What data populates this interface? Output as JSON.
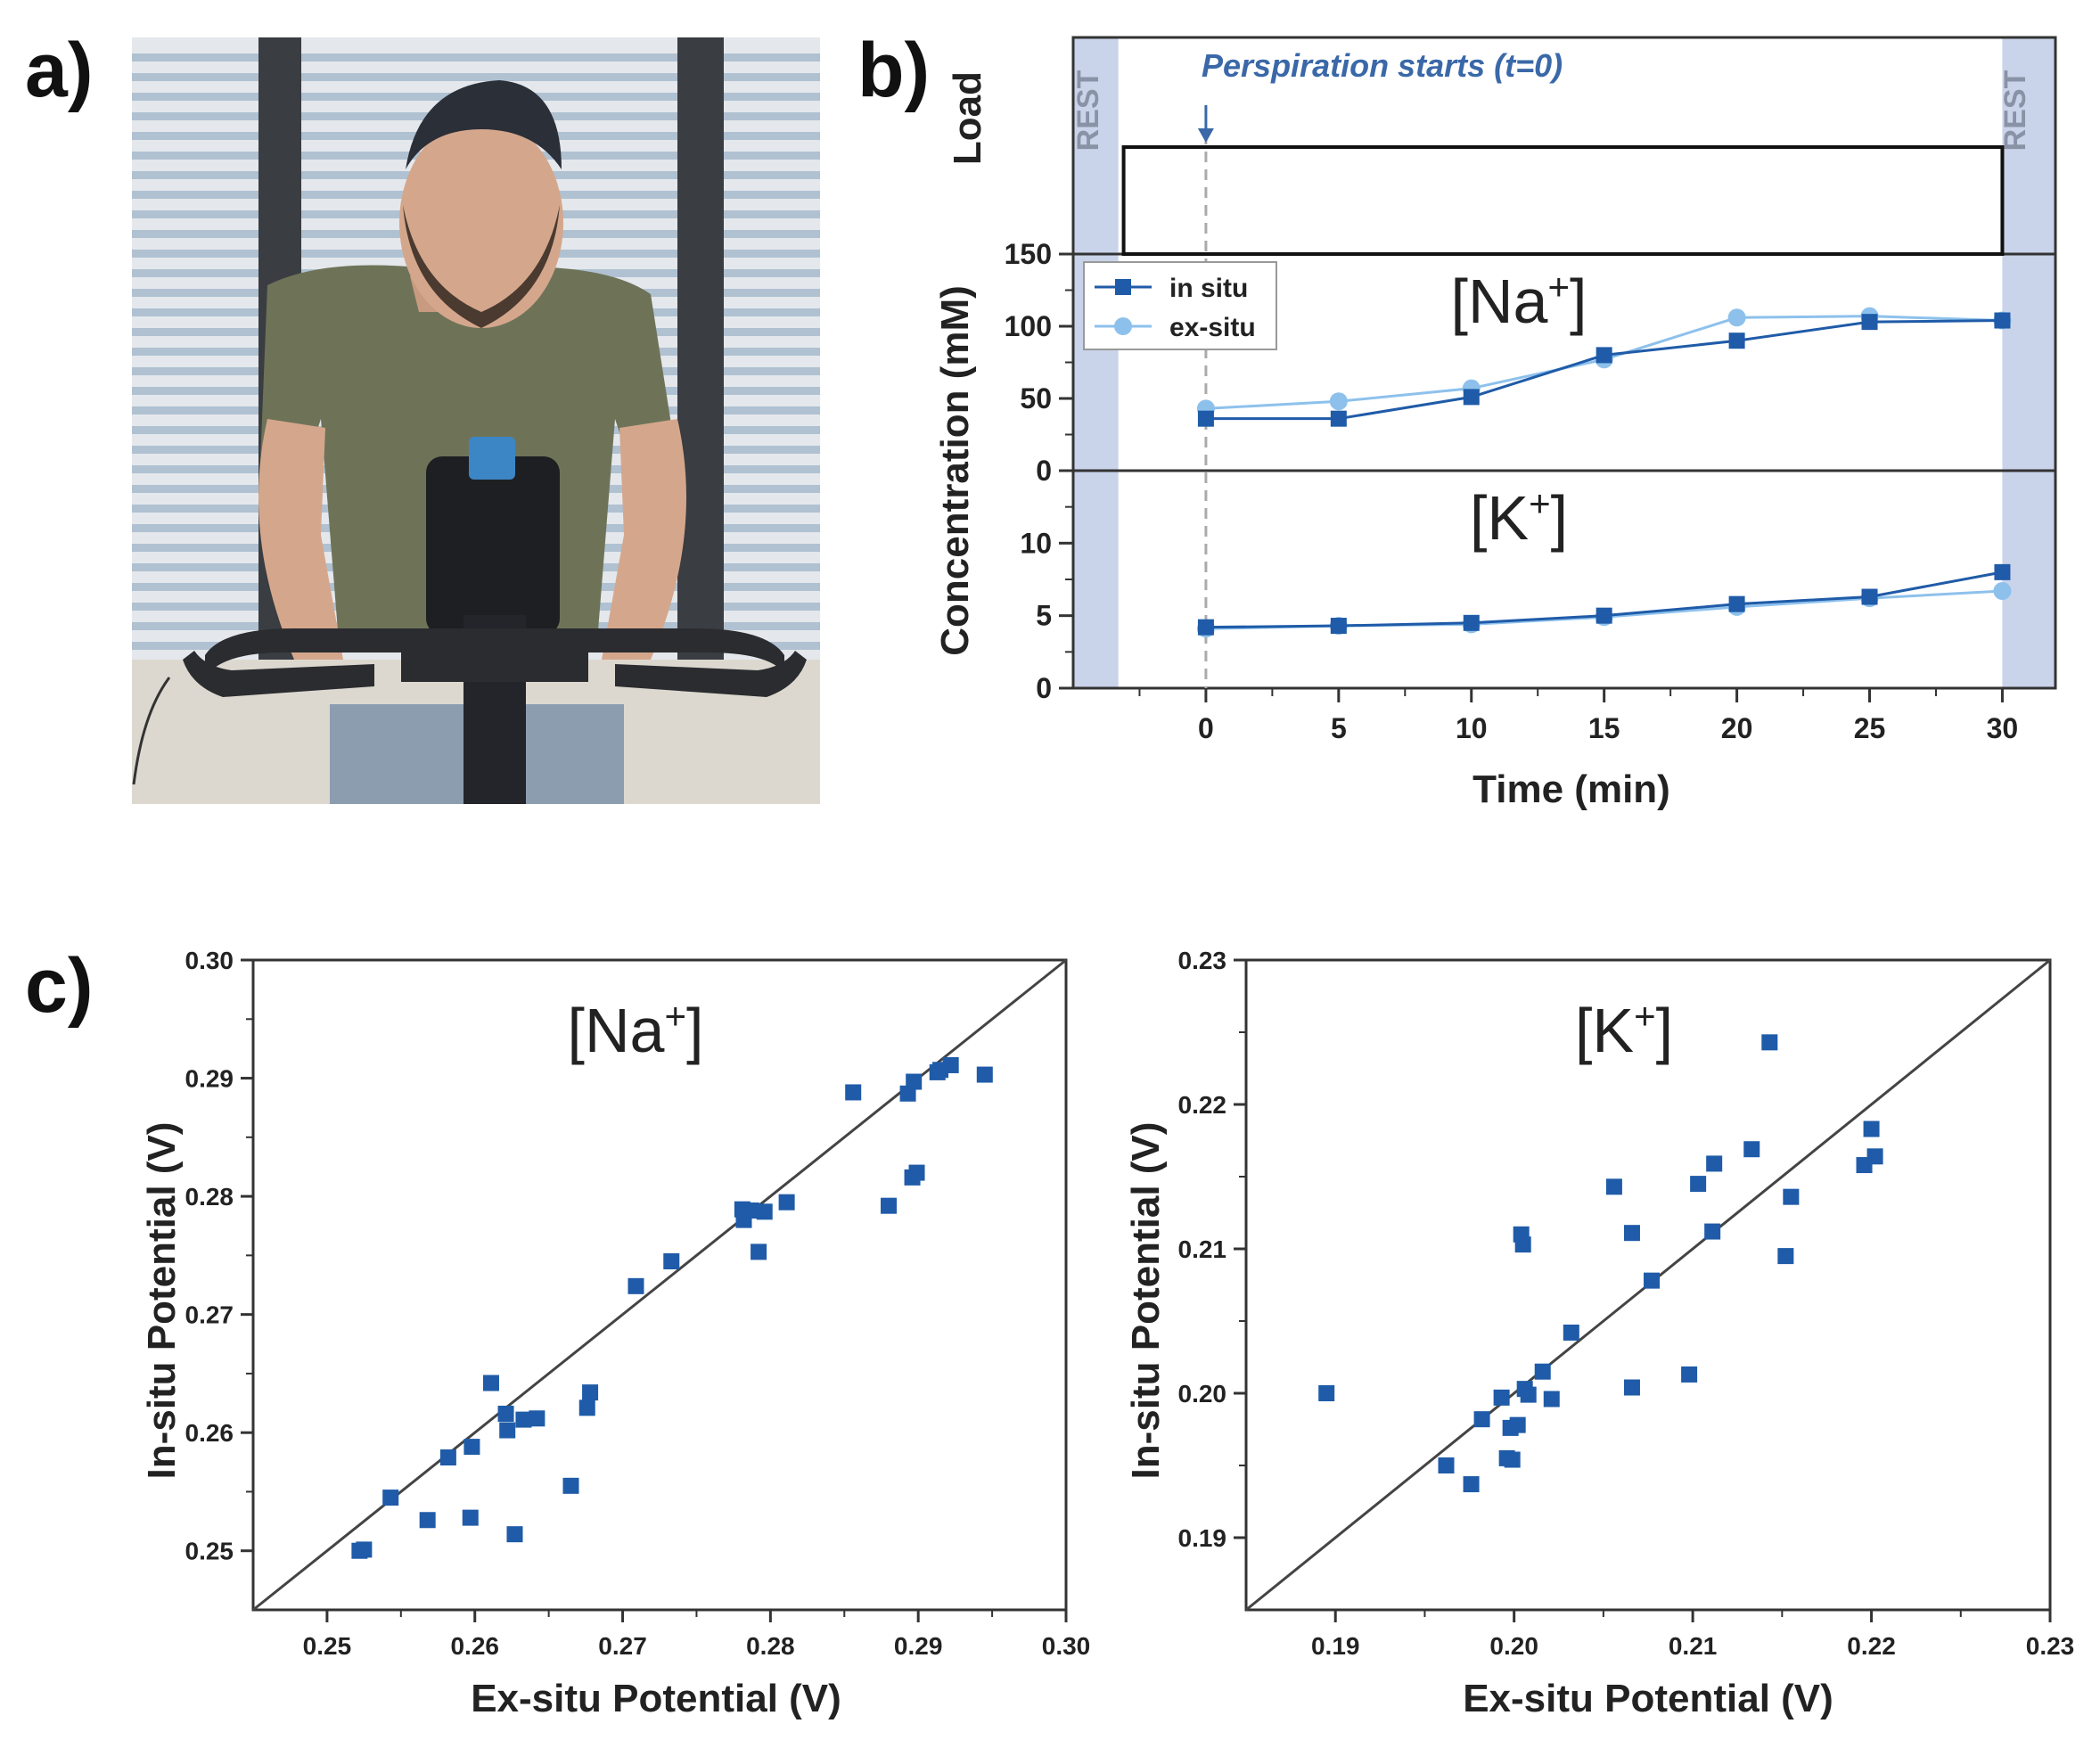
{
  "panels": {
    "a": {
      "label": "a)"
    },
    "b": {
      "label": "b)"
    },
    "c": {
      "label": "c)"
    }
  },
  "colors": {
    "in_situ": "#1f5ba8",
    "ex_situ": "#8dc1ec",
    "rest_band": "#c9d3ea",
    "axis": "#333333"
  },
  "chart_data": [
    {
      "id": "timecourse",
      "type": "line",
      "x": [
        0,
        5,
        10,
        15,
        20,
        25,
        30
      ],
      "xlabel": "Time (min)",
      "ylabel": "Concentration (mM)",
      "xlim": [
        -5,
        32
      ],
      "xticks": [
        "0",
        "5",
        "10",
        "15",
        "20",
        "25",
        "30"
      ],
      "load_label": "Load",
      "rest_labels": [
        "REST",
        "REST"
      ],
      "annotation": "Perspiration starts (t=0)",
      "legend": [
        "in situ",
        "ex-situ"
      ],
      "sodium": {
        "label_main": "[Na",
        "label_sup": "+",
        "label_end": "]",
        "ylim": [
          0,
          150
        ],
        "yticks": [
          "0",
          "50",
          "100",
          "150"
        ],
        "series": [
          {
            "name": "in situ",
            "values": [
              36,
              36,
              51,
              80,
              90,
              103,
              104
            ]
          },
          {
            "name": "ex-situ",
            "values": [
              43,
              48,
              57,
              77,
              106,
              107,
              104
            ]
          }
        ]
      },
      "potassium": {
        "label_main": "[K",
        "label_sup": "+",
        "label_end": "]",
        "ylim": [
          0,
          15
        ],
        "yticks": [
          "0",
          "5",
          "10"
        ],
        "series": [
          {
            "name": "in situ",
            "values": [
              4.2,
              4.3,
              4.5,
              5.0,
              5.8,
              6.3,
              8.0
            ]
          },
          {
            "name": "ex-situ",
            "values": [
              4.1,
              4.3,
              4.4,
              4.9,
              5.6,
              6.2,
              6.7
            ]
          }
        ]
      }
    },
    {
      "id": "na_scatter",
      "type": "scatter",
      "title_main": "[Na",
      "title_sup": "+",
      "title_end": "]",
      "xlabel": "Ex-situ Potential (V)",
      "ylabel": "In-situ Potential (V)",
      "xlim": [
        0.245,
        0.3
      ],
      "ylim": [
        0.245,
        0.3
      ],
      "xticks": [
        "0.25",
        "0.26",
        "0.27",
        "0.28",
        "0.29",
        "0.30"
      ],
      "yticks": [
        "0.25",
        "0.26",
        "0.27",
        "0.28",
        "0.29",
        "0.30"
      ],
      "identity_line": true,
      "x": [
        0.2522,
        0.2525,
        0.2543,
        0.2568,
        0.2582,
        0.2598,
        0.2597,
        0.2611,
        0.2621,
        0.2622,
        0.2627,
        0.2633,
        0.2642,
        0.2665,
        0.2676,
        0.2678,
        0.2709,
        0.2733,
        0.2781,
        0.2782,
        0.2787,
        0.2792,
        0.2796,
        0.2811,
        0.2856,
        0.288,
        0.2893,
        0.2896,
        0.2897,
        0.2899,
        0.2913,
        0.2915,
        0.2922,
        0.2945
      ],
      "y": [
        0.25,
        0.2501,
        0.2545,
        0.2526,
        0.2579,
        0.2588,
        0.2528,
        0.2642,
        0.2616,
        0.2602,
        0.2514,
        0.2611,
        0.2612,
        0.2555,
        0.2621,
        0.2634,
        0.2724,
        0.2745,
        0.2789,
        0.278,
        0.2788,
        0.2753,
        0.2787,
        0.2795,
        0.2888,
        0.2792,
        0.2887,
        0.2816,
        0.2897,
        0.282,
        0.2905,
        0.2907,
        0.2911,
        0.2903
      ]
    },
    {
      "id": "k_scatter",
      "type": "scatter",
      "title_main": "[K",
      "title_sup": "+",
      "title_end": "]",
      "xlabel": "Ex-situ Potential (V)",
      "ylabel": "In-situ Potential (V)",
      "xlim": [
        0.185,
        0.23
      ],
      "ylim": [
        0.185,
        0.23
      ],
      "xticks": [
        "0.19",
        "0.20",
        "0.21",
        "0.22",
        "0.23"
      ],
      "yticks": [
        "0.19",
        "0.20",
        "0.21",
        "0.22",
        "0.23"
      ],
      "identity_line": true,
      "x": [
        0.1895,
        0.1962,
        0.1976,
        0.1982,
        0.1993,
        0.1996,
        0.1998,
        0.1999,
        0.2002,
        0.2004,
        0.2005,
        0.2006,
        0.2008,
        0.2016,
        0.2021,
        0.2032,
        0.2056,
        0.2066,
        0.2066,
        0.2077,
        0.2098,
        0.2103,
        0.2111,
        0.2112,
        0.2133,
        0.2143,
        0.2152,
        0.2155,
        0.2196,
        0.22,
        0.2202
      ],
      "y": [
        0.2,
        0.195,
        0.1937,
        0.1982,
        0.1997,
        0.1955,
        0.1976,
        0.1954,
        0.1978,
        0.211,
        0.2103,
        0.2003,
        0.1999,
        0.2015,
        0.1996,
        0.2042,
        0.2143,
        0.2111,
        0.2004,
        0.2078,
        0.2013,
        0.2145,
        0.2112,
        0.2159,
        0.2169,
        0.2243,
        0.2095,
        0.2136,
        0.2158,
        0.2183,
        0.2164
      ]
    }
  ]
}
